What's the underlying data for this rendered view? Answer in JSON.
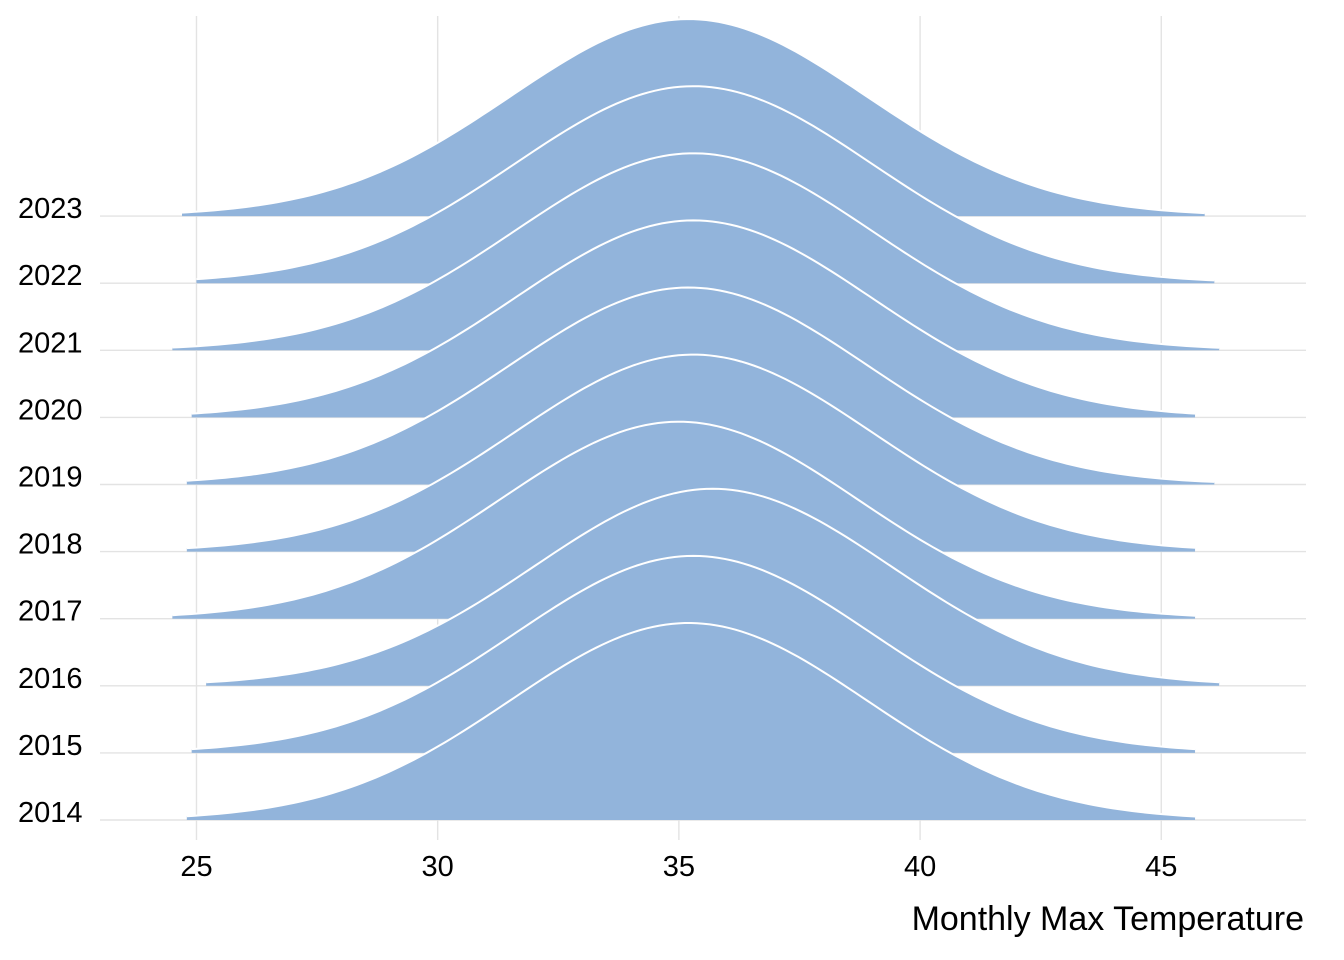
{
  "chart_data": {
    "type": "ridgeline-density",
    "title": "",
    "xlabel": "Monthly Max Temperature",
    "ylabel": "",
    "xlim": [
      23,
      48
    ],
    "x_ticks": [
      25,
      30,
      35,
      40,
      45
    ],
    "grid": true,
    "legend": "none",
    "fill_color": "#92b4db",
    "outline_color": "#ffffff",
    "grid_color": "#e3e3e3",
    "categories": [
      "2014",
      "2015",
      "2016",
      "2017",
      "2018",
      "2019",
      "2020",
      "2021",
      "2022",
      "2023"
    ],
    "series": [
      {
        "name": "2014",
        "mean": 35.2,
        "sd": 3.7,
        "min": 24.8,
        "max": 45.7,
        "peak": 1.0
      },
      {
        "name": "2015",
        "mean": 35.3,
        "sd": 3.7,
        "min": 24.9,
        "max": 45.7,
        "peak": 1.0
      },
      {
        "name": "2016",
        "mean": 35.7,
        "sd": 3.7,
        "min": 25.2,
        "max": 46.2,
        "peak": 1.0
      },
      {
        "name": "2017",
        "mean": 35.0,
        "sd": 3.7,
        "min": 24.5,
        "max": 45.7,
        "peak": 1.0
      },
      {
        "name": "2018",
        "mean": 35.3,
        "sd": 3.7,
        "min": 24.8,
        "max": 45.7,
        "peak": 1.0
      },
      {
        "name": "2019",
        "mean": 35.2,
        "sd": 3.7,
        "min": 24.8,
        "max": 46.1,
        "peak": 1.0
      },
      {
        "name": "2020",
        "mean": 35.3,
        "sd": 3.7,
        "min": 24.9,
        "max": 45.7,
        "peak": 1.0
      },
      {
        "name": "2021",
        "mean": 35.3,
        "sd": 3.7,
        "min": 24.5,
        "max": 46.2,
        "peak": 1.0
      },
      {
        "name": "2022",
        "mean": 35.3,
        "sd": 3.7,
        "min": 25.0,
        "max": 46.1,
        "peak": 1.0
      },
      {
        "name": "2023",
        "mean": 35.2,
        "sd": 3.7,
        "min": 24.7,
        "max": 45.9,
        "peak": 1.0
      }
    ]
  }
}
